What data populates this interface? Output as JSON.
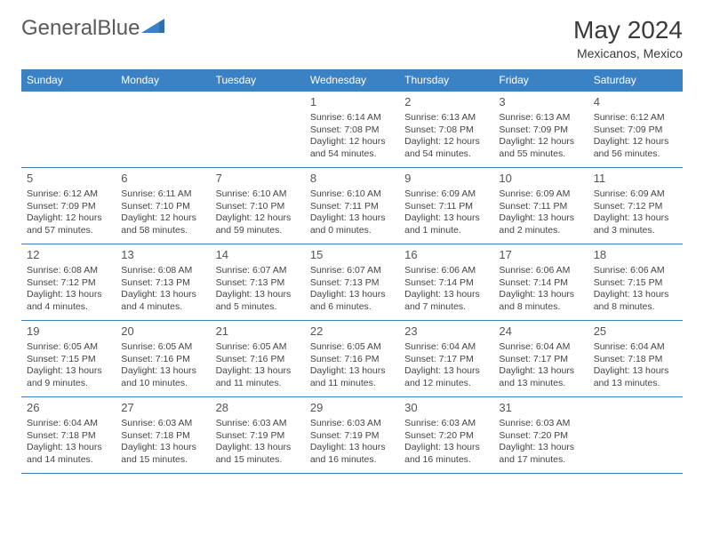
{
  "brand": {
    "part1": "General",
    "part2": "Blue"
  },
  "title": "May 2024",
  "subtitle": "Mexicanos, Mexico",
  "colors": {
    "header_bg": "#3b82c4",
    "header_text": "#ffffff",
    "border": "#3b82c4"
  },
  "day_headers": [
    "Sunday",
    "Monday",
    "Tuesday",
    "Wednesday",
    "Thursday",
    "Friday",
    "Saturday"
  ],
  "weeks": [
    [
      null,
      null,
      null,
      {
        "n": "1",
        "sr": "6:14 AM",
        "ss": "7:08 PM",
        "dl": "12 hours and 54 minutes."
      },
      {
        "n": "2",
        "sr": "6:13 AM",
        "ss": "7:08 PM",
        "dl": "12 hours and 54 minutes."
      },
      {
        "n": "3",
        "sr": "6:13 AM",
        "ss": "7:09 PM",
        "dl": "12 hours and 55 minutes."
      },
      {
        "n": "4",
        "sr": "6:12 AM",
        "ss": "7:09 PM",
        "dl": "12 hours and 56 minutes."
      }
    ],
    [
      {
        "n": "5",
        "sr": "6:12 AM",
        "ss": "7:09 PM",
        "dl": "12 hours and 57 minutes."
      },
      {
        "n": "6",
        "sr": "6:11 AM",
        "ss": "7:10 PM",
        "dl": "12 hours and 58 minutes."
      },
      {
        "n": "7",
        "sr": "6:10 AM",
        "ss": "7:10 PM",
        "dl": "12 hours and 59 minutes."
      },
      {
        "n": "8",
        "sr": "6:10 AM",
        "ss": "7:11 PM",
        "dl": "13 hours and 0 minutes."
      },
      {
        "n": "9",
        "sr": "6:09 AM",
        "ss": "7:11 PM",
        "dl": "13 hours and 1 minute."
      },
      {
        "n": "10",
        "sr": "6:09 AM",
        "ss": "7:11 PM",
        "dl": "13 hours and 2 minutes."
      },
      {
        "n": "11",
        "sr": "6:09 AM",
        "ss": "7:12 PM",
        "dl": "13 hours and 3 minutes."
      }
    ],
    [
      {
        "n": "12",
        "sr": "6:08 AM",
        "ss": "7:12 PM",
        "dl": "13 hours and 4 minutes."
      },
      {
        "n": "13",
        "sr": "6:08 AM",
        "ss": "7:13 PM",
        "dl": "13 hours and 4 minutes."
      },
      {
        "n": "14",
        "sr": "6:07 AM",
        "ss": "7:13 PM",
        "dl": "13 hours and 5 minutes."
      },
      {
        "n": "15",
        "sr": "6:07 AM",
        "ss": "7:13 PM",
        "dl": "13 hours and 6 minutes."
      },
      {
        "n": "16",
        "sr": "6:06 AM",
        "ss": "7:14 PM",
        "dl": "13 hours and 7 minutes."
      },
      {
        "n": "17",
        "sr": "6:06 AM",
        "ss": "7:14 PM",
        "dl": "13 hours and 8 minutes."
      },
      {
        "n": "18",
        "sr": "6:06 AM",
        "ss": "7:15 PM",
        "dl": "13 hours and 8 minutes."
      }
    ],
    [
      {
        "n": "19",
        "sr": "6:05 AM",
        "ss": "7:15 PM",
        "dl": "13 hours and 9 minutes."
      },
      {
        "n": "20",
        "sr": "6:05 AM",
        "ss": "7:16 PM",
        "dl": "13 hours and 10 minutes."
      },
      {
        "n": "21",
        "sr": "6:05 AM",
        "ss": "7:16 PM",
        "dl": "13 hours and 11 minutes."
      },
      {
        "n": "22",
        "sr": "6:05 AM",
        "ss": "7:16 PM",
        "dl": "13 hours and 11 minutes."
      },
      {
        "n": "23",
        "sr": "6:04 AM",
        "ss": "7:17 PM",
        "dl": "13 hours and 12 minutes."
      },
      {
        "n": "24",
        "sr": "6:04 AM",
        "ss": "7:17 PM",
        "dl": "13 hours and 13 minutes."
      },
      {
        "n": "25",
        "sr": "6:04 AM",
        "ss": "7:18 PM",
        "dl": "13 hours and 13 minutes."
      }
    ],
    [
      {
        "n": "26",
        "sr": "6:04 AM",
        "ss": "7:18 PM",
        "dl": "13 hours and 14 minutes."
      },
      {
        "n": "27",
        "sr": "6:03 AM",
        "ss": "7:18 PM",
        "dl": "13 hours and 15 minutes."
      },
      {
        "n": "28",
        "sr": "6:03 AM",
        "ss": "7:19 PM",
        "dl": "13 hours and 15 minutes."
      },
      {
        "n": "29",
        "sr": "6:03 AM",
        "ss": "7:19 PM",
        "dl": "13 hours and 16 minutes."
      },
      {
        "n": "30",
        "sr": "6:03 AM",
        "ss": "7:20 PM",
        "dl": "13 hours and 16 minutes."
      },
      {
        "n": "31",
        "sr": "6:03 AM",
        "ss": "7:20 PM",
        "dl": "13 hours and 17 minutes."
      },
      null
    ]
  ]
}
